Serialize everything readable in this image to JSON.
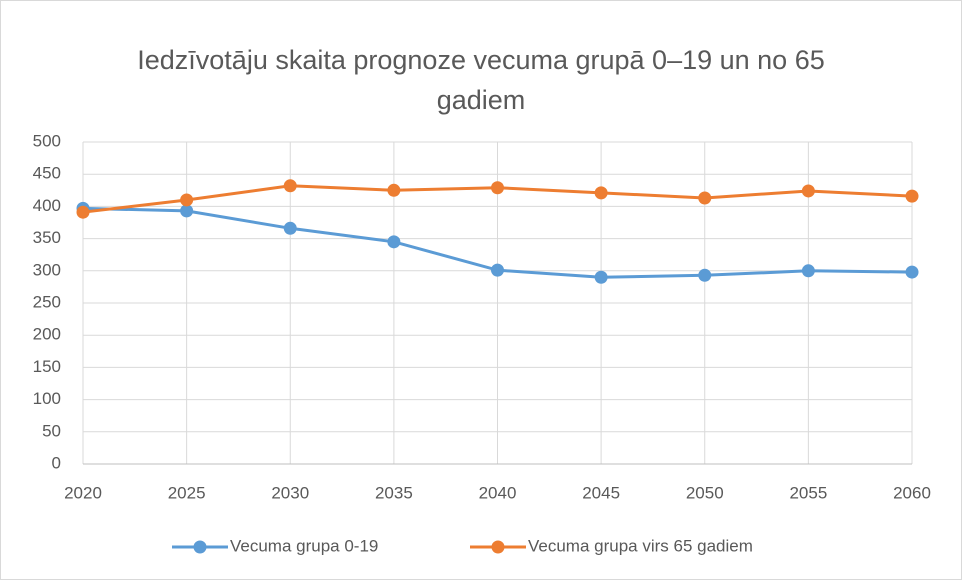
{
  "chart_data": {
    "type": "line",
    "title": "Iedzīvotāju skaita prognoze vecuma grupā 0–19 un no 65 gadiem",
    "x": [
      2020,
      2025,
      2030,
      2035,
      2040,
      2045,
      2050,
      2055,
      2060
    ],
    "xlim": [
      2020,
      2060
    ],
    "xticks": [
      2020,
      2025,
      2030,
      2035,
      2040,
      2045,
      2050,
      2055,
      2060
    ],
    "ylim": [
      0,
      500
    ],
    "yticks": [
      0,
      50,
      100,
      150,
      200,
      250,
      300,
      350,
      400,
      450,
      500
    ],
    "grid": true,
    "legend": "bottom",
    "series": [
      {
        "name": "Vecuma grupa 0-19",
        "color": "#5b9bd5",
        "values": [
          397,
          393,
          366,
          345,
          301,
          290,
          293,
          300,
          298
        ]
      },
      {
        "name": "Vecuma grupa virs 65 gadiem",
        "color": "#ed7d31",
        "values": [
          391,
          410,
          432,
          425,
          429,
          421,
          413,
          424,
          416
        ]
      }
    ]
  }
}
